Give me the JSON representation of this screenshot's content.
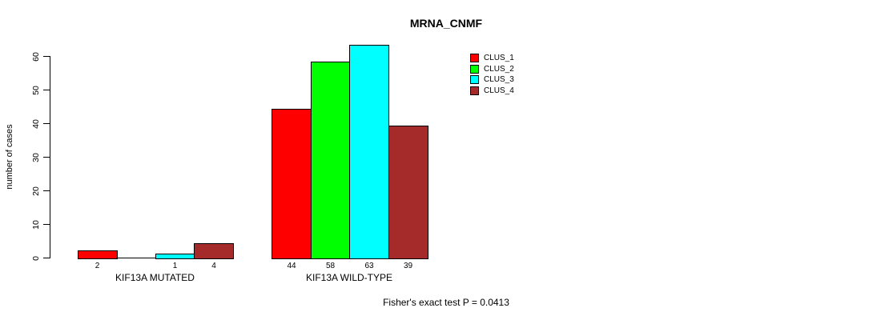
{
  "chart_data": {
    "type": "bar",
    "title": "MRNA_CNMF",
    "ylabel": "number of cases",
    "xlabel": "",
    "groups": [
      "KIF13A MUTATED",
      "KIF13A WILD-TYPE"
    ],
    "series": [
      {
        "name": "CLUS_1",
        "color": "#FF0000",
        "values": [
          2,
          44
        ]
      },
      {
        "name": "CLUS_2",
        "color": "#00FF00",
        "values": [
          0,
          58
        ]
      },
      {
        "name": "CLUS_3",
        "color": "#00FFFF",
        "values": [
          1,
          63
        ]
      },
      {
        "name": "CLUS_4",
        "color": "#A52A2A",
        "values": [
          4,
          39
        ]
      }
    ],
    "yticks": [
      0,
      10,
      20,
      30,
      40,
      50,
      60
    ],
    "ylim": [
      0,
      63
    ],
    "grid": false,
    "legend_position": "top-right",
    "bar_value_labels": true,
    "annotation": "Fisher's exact test P = 0.0413"
  }
}
